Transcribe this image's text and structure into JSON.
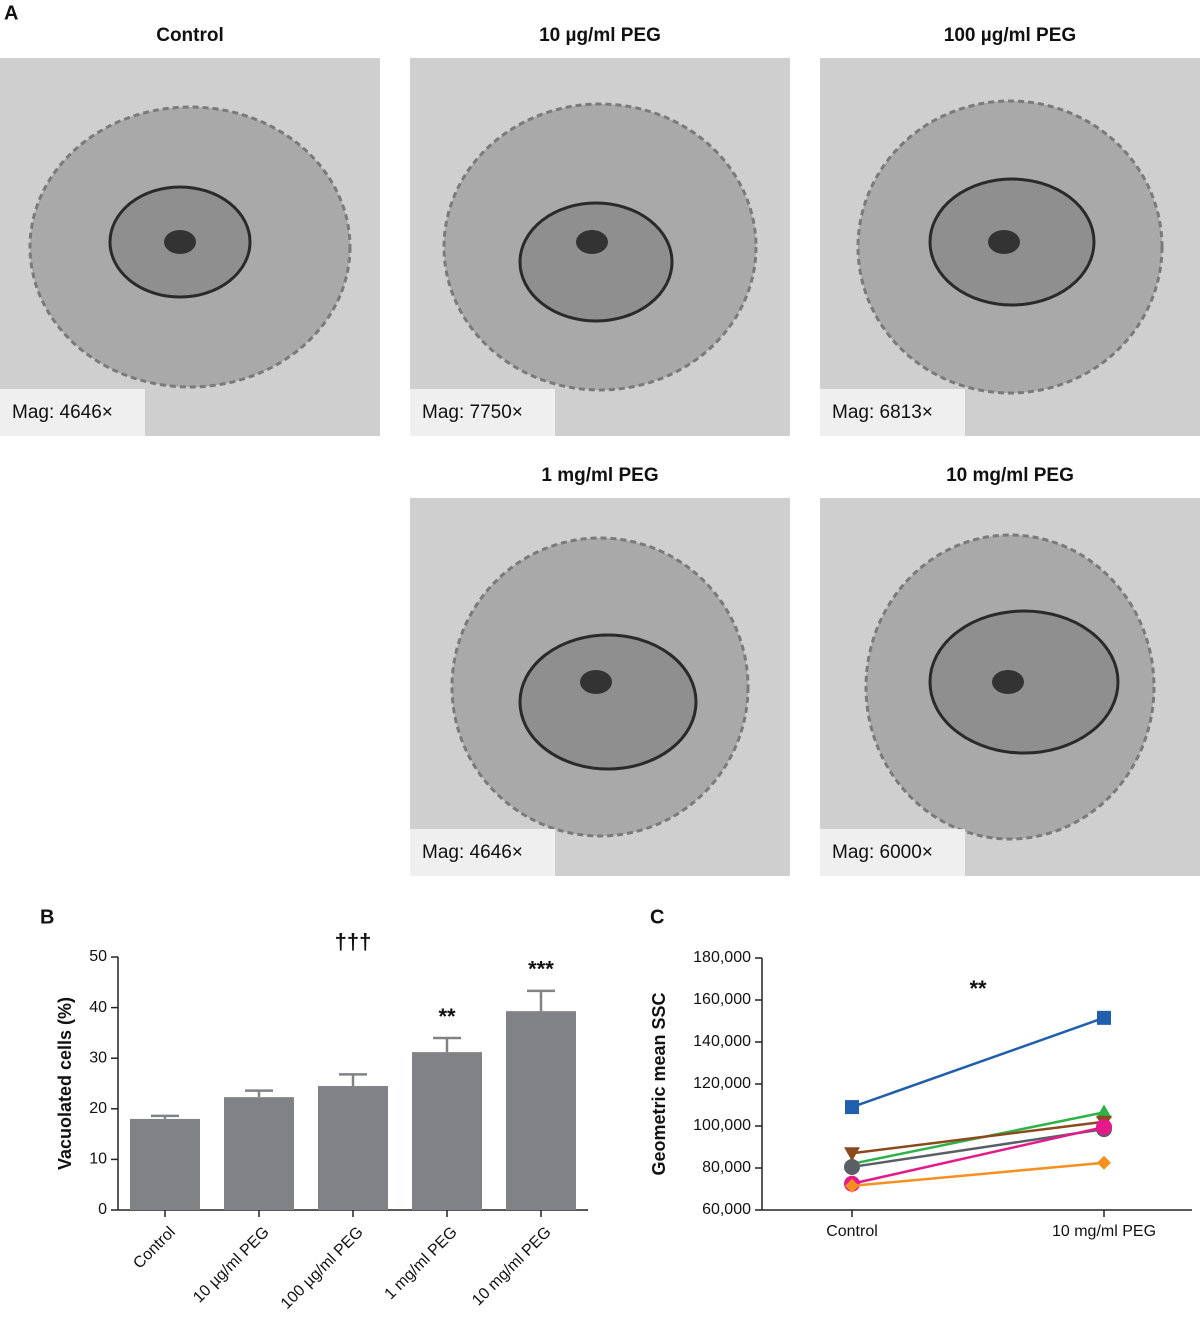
{
  "panels": [
    "A",
    "B",
    "C"
  ],
  "micrographs": [
    {
      "title": "Control",
      "mag": "Mag: 4646×"
    },
    {
      "title": "10 µg/ml PEG",
      "mag": "Mag: 7750×"
    },
    {
      "title": "100 µg/ml PEG",
      "mag": "Mag: 6813×"
    },
    {
      "title": "1 mg/ml PEG",
      "mag": "Mag: 4646×"
    },
    {
      "title": "10 mg/ml PEG",
      "mag": "Mag: 6000×"
    }
  ],
  "chart_data": [
    {
      "type": "bar",
      "ylabel": "Vacuolated cells (%)",
      "categories": [
        "Control",
        "10 µg/ml PEG",
        "100 µg/ml PEG",
        "1 mg/ml PEG",
        "10 mg/ml PEG"
      ],
      "values": [
        18,
        22.3,
        24.5,
        31.2,
        39.3
      ],
      "errors": [
        0.6,
        1.3,
        2.3,
        2.8,
        4.0
      ],
      "color": "#808285",
      "ylim": [
        0,
        50
      ],
      "yticks": [
        0,
        10,
        20,
        30,
        40,
        50
      ],
      "annotations": [
        {
          "text": "†††"
        },
        {
          "text": "**",
          "category": "1 mg/ml PEG"
        },
        {
          "text": "***",
          "category": "10 mg/ml PEG"
        }
      ]
    },
    {
      "type": "line",
      "ylabel": "Geometric mean SSC",
      "categories": [
        "Control",
        "10 mg/ml PEG"
      ],
      "series": [
        {
          "color": "#1f5fad",
          "marker": "square",
          "values": [
            109000,
            151500
          ]
        },
        {
          "color": "#2db34a",
          "marker": "triangle-up",
          "values": [
            82000,
            106500
          ]
        },
        {
          "color": "#8b4a1c",
          "marker": "triangle-down",
          "values": [
            87000,
            102000
          ]
        },
        {
          "color": "#5a5f66",
          "marker": "circle",
          "values": [
            80500,
            98500
          ]
        },
        {
          "color": "#e6198a",
          "marker": "circle",
          "values": [
            72500,
            99500
          ]
        },
        {
          "color": "#f7901e",
          "marker": "diamond",
          "values": [
            71500,
            82500
          ]
        }
      ],
      "ylim": [
        60000,
        180000
      ],
      "yticks": [
        {
          "value": 60000,
          "label": "60,000"
        },
        {
          "value": 80000,
          "label": "80,000"
        },
        {
          "value": 100000,
          "label": "100,000"
        },
        {
          "value": 120000,
          "label": "120,000"
        },
        {
          "value": 140000,
          "label": "140,000"
        },
        {
          "value": 160000,
          "label": "160,000"
        },
        {
          "value": 180000,
          "label": "180,000"
        }
      ],
      "annotations": [
        {
          "text": "**"
        }
      ]
    }
  ]
}
